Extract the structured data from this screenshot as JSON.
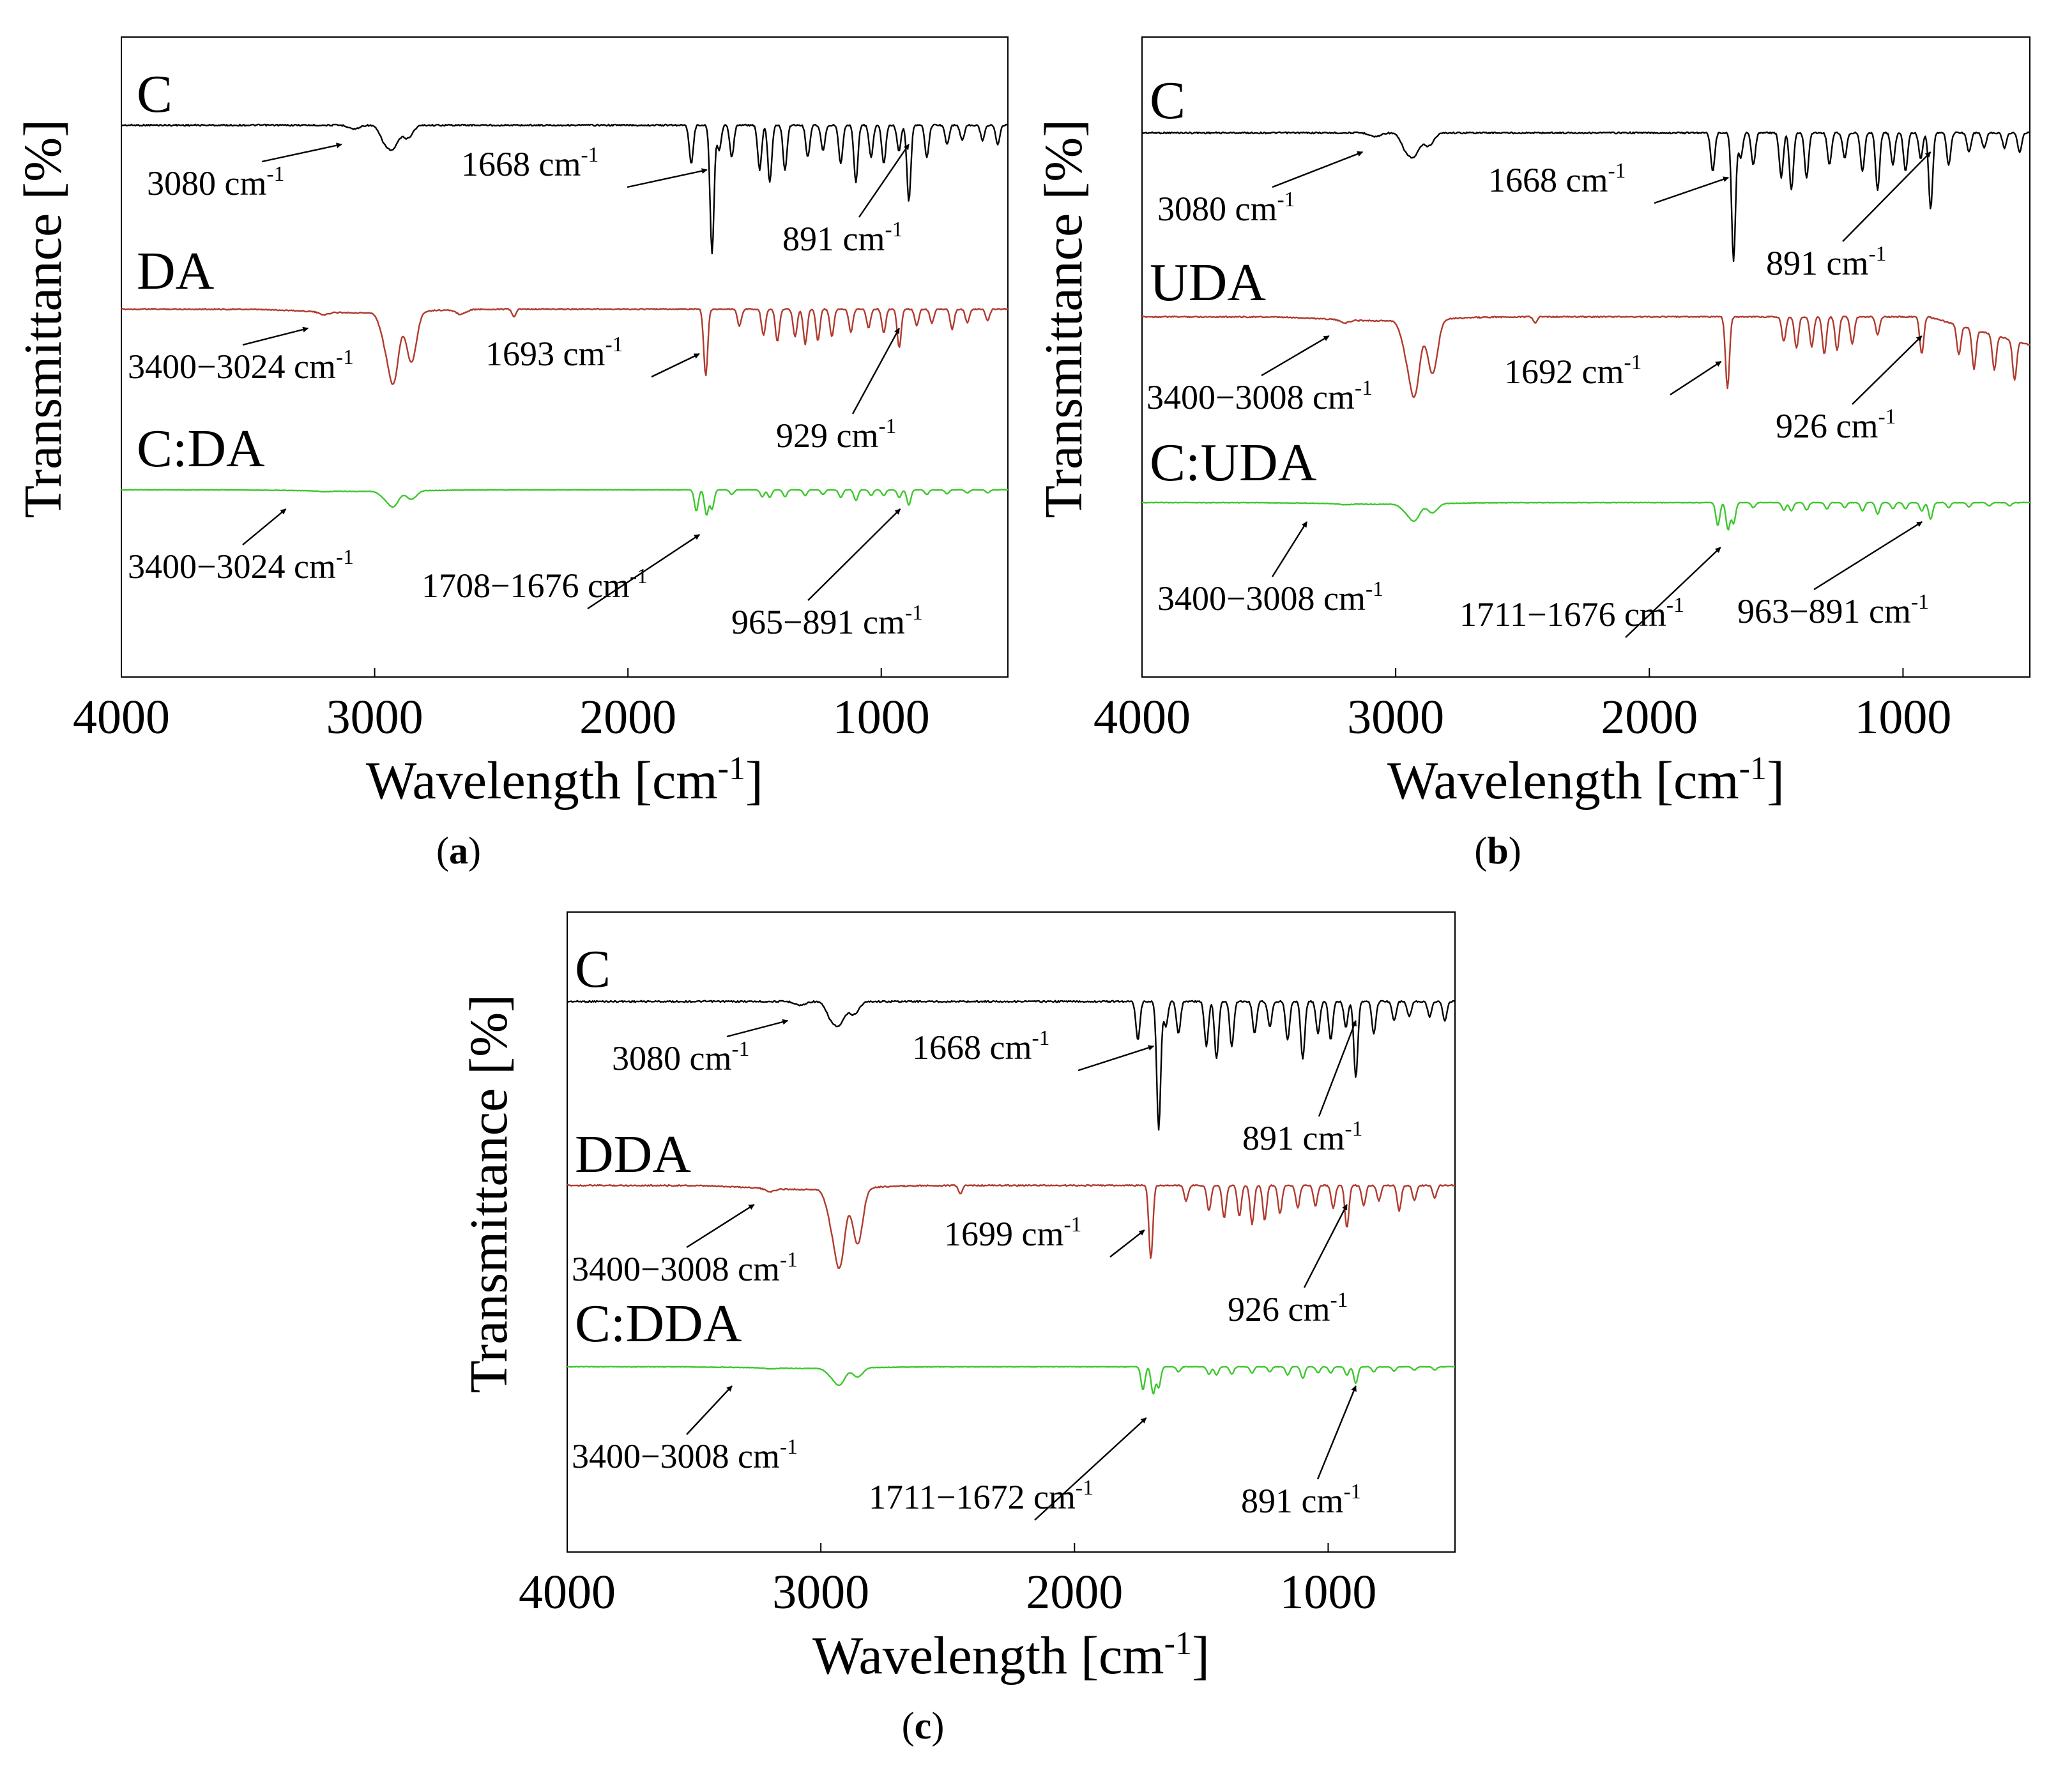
{
  "figure": {
    "unit_text": "cm",
    "unit_exp": "-1"
  },
  "chart_data": [
    {
      "type": "line",
      "panel_label": "a",
      "xlabel_prefix": "Wavelength [cm",
      "xlabel_suffix": "]",
      "ylabel": "Transmittance [%]",
      "xlim": [
        4000,
        500
      ],
      "xticks": [
        "4000",
        "3000",
        "2000",
        "1000"
      ],
      "series": [
        {
          "name": "C",
          "color": "#000000",
          "peaks": [
            [
              3080,
              0.03
            ],
            [
              2960,
              0.12
            ],
            [
              2925,
              0.16
            ],
            [
              2870,
              0.1
            ],
            [
              1750,
              0.3
            ],
            [
              1668,
              1.0
            ],
            [
              1640,
              0.2
            ],
            [
              1590,
              0.25
            ],
            [
              1480,
              0.35
            ],
            [
              1440,
              0.45
            ],
            [
              1380,
              0.35
            ],
            [
              1290,
              0.25
            ],
            [
              1230,
              0.2
            ],
            [
              1160,
              0.3
            ],
            [
              1100,
              0.45
            ],
            [
              1040,
              0.25
            ],
            [
              990,
              0.3
            ],
            [
              930,
              0.2
            ],
            [
              891,
              0.6
            ],
            [
              820,
              0.25
            ],
            [
              740,
              0.15
            ],
            [
              680,
              0.12
            ],
            [
              600,
              0.12
            ],
            [
              540,
              0.15
            ]
          ],
          "annotations": [
            {
              "text": "3080 cm",
              "peak_x": 3080
            },
            {
              "text": "1668 cm",
              "peak_x": 1668
            },
            {
              "text": "891 cm",
              "peak_x": 891
            }
          ]
        },
        {
          "name": "DA",
          "color": "#b03a2e",
          "peaks": [
            [
              3200,
              0.03
            ],
            [
              2960,
              0.25
            ],
            [
              2925,
              0.72
            ],
            [
              2855,
              0.55
            ],
            [
              2660,
              0.05
            ],
            [
              2450,
              0.08
            ],
            [
              1693,
              0.72
            ],
            [
              1560,
              0.18
            ],
            [
              1465,
              0.28
            ],
            [
              1410,
              0.35
            ],
            [
              1340,
              0.3
            ],
            [
              1300,
              0.38
            ],
            [
              1250,
              0.34
            ],
            [
              1195,
              0.3
            ],
            [
              1120,
              0.25
            ],
            [
              1050,
              0.2
            ],
            [
              990,
              0.25
            ],
            [
              929,
              0.42
            ],
            [
              860,
              0.18
            ],
            [
              800,
              0.15
            ],
            [
              720,
              0.22
            ],
            [
              660,
              0.15
            ],
            [
              580,
              0.12
            ]
          ],
          "annotations": [
            {
              "text": "3400−3024 cm",
              "peak_x": 3200
            },
            {
              "text": "1693 cm",
              "peak_x": 1693
            },
            {
              "text": "929 cm",
              "peak_x": 929
            }
          ]
        },
        {
          "name": "C:DA",
          "color": "#3ec72e",
          "peaks": [
            [
              3200,
              0.02
            ],
            [
              2960,
              0.15
            ],
            [
              2925,
              0.38
            ],
            [
              2855,
              0.22
            ],
            [
              1730,
              0.55
            ],
            [
              1690,
              0.65
            ],
            [
              1668,
              0.5
            ],
            [
              1590,
              0.12
            ],
            [
              1470,
              0.18
            ],
            [
              1440,
              0.2
            ],
            [
              1380,
              0.18
            ],
            [
              1300,
              0.15
            ],
            [
              1230,
              0.12
            ],
            [
              1160,
              0.2
            ],
            [
              1100,
              0.28
            ],
            [
              1040,
              0.15
            ],
            [
              990,
              0.15
            ],
            [
              929,
              0.2
            ],
            [
              891,
              0.4
            ],
            [
              820,
              0.12
            ],
            [
              740,
              0.1
            ],
            [
              660,
              0.08
            ],
            [
              580,
              0.08
            ]
          ],
          "annotations": [
            {
              "text": "3400−3024 cm",
              "peak_x": 3300
            },
            {
              "text": "1708−1676 cm",
              "peak_x": 1692
            },
            {
              "text": "965−891 cm",
              "peak_x": 925
            }
          ]
        }
      ]
    },
    {
      "type": "line",
      "panel_label": "b",
      "xlabel_prefix": "Wavelength [cm",
      "xlabel_suffix": "]",
      "ylabel": "Transmittance [%]",
      "xlim": [
        4000,
        500
      ],
      "xticks": [
        "4000",
        "3000",
        "2000",
        "1000"
      ],
      "series": [
        {
          "name": "C",
          "color": "#000000",
          "peaks": [
            [
              3080,
              0.03
            ],
            [
              2960,
              0.12
            ],
            [
              2925,
              0.16
            ],
            [
              2870,
              0.1
            ],
            [
              1750,
              0.3
            ],
            [
              1668,
              1.0
            ],
            [
              1640,
              0.2
            ],
            [
              1590,
              0.25
            ],
            [
              1480,
              0.35
            ],
            [
              1440,
              0.45
            ],
            [
              1380,
              0.35
            ],
            [
              1290,
              0.25
            ],
            [
              1230,
              0.2
            ],
            [
              1160,
              0.3
            ],
            [
              1100,
              0.45
            ],
            [
              1040,
              0.25
            ],
            [
              990,
              0.3
            ],
            [
              930,
              0.2
            ],
            [
              891,
              0.6
            ],
            [
              820,
              0.25
            ],
            [
              740,
              0.15
            ],
            [
              680,
              0.12
            ],
            [
              600,
              0.12
            ],
            [
              540,
              0.15
            ]
          ],
          "annotations": [
            {
              "text": "3080 cm",
              "peak_x": 3080
            },
            {
              "text": "1668 cm",
              "peak_x": 1668
            },
            {
              "text": "891 cm",
              "peak_x": 891
            }
          ]
        },
        {
          "name": "UDA",
          "color": "#b03a2e",
          "peaks": [
            [
              3200,
              0.03
            ],
            [
              2960,
              0.25
            ],
            [
              2925,
              0.72
            ],
            [
              2855,
              0.55
            ],
            [
              2450,
              0.06
            ],
            [
              1692,
              0.72
            ],
            [
              1470,
              0.25
            ],
            [
              1420,
              0.32
            ],
            [
              1360,
              0.3
            ],
            [
              1310,
              0.38
            ],
            [
              1260,
              0.34
            ],
            [
              1200,
              0.28
            ],
            [
              1100,
              0.18
            ],
            [
              926,
              0.38
            ],
            [
              780,
              0.3
            ],
            [
              720,
              0.4
            ],
            [
              640,
              0.35
            ],
            [
              560,
              0.4
            ]
          ],
          "annotations": [
            {
              "text": "3400−3008 cm",
              "peak_x": 3200
            },
            {
              "text": "1692 cm",
              "peak_x": 1692
            },
            {
              "text": "926 cm",
              "peak_x": 926
            }
          ]
        },
        {
          "name": "C:UDA",
          "color": "#3ec72e",
          "peaks": [
            [
              3200,
              0.02
            ],
            [
              2960,
              0.15
            ],
            [
              2925,
              0.38
            ],
            [
              2855,
              0.22
            ],
            [
              1730,
              0.55
            ],
            [
              1690,
              0.65
            ],
            [
              1668,
              0.5
            ],
            [
              1590,
              0.12
            ],
            [
              1470,
              0.18
            ],
            [
              1440,
              0.2
            ],
            [
              1380,
              0.18
            ],
            [
              1300,
              0.15
            ],
            [
              1230,
              0.12
            ],
            [
              1160,
              0.2
            ],
            [
              1100,
              0.28
            ],
            [
              1040,
              0.15
            ],
            [
              990,
              0.15
            ],
            [
              926,
              0.2
            ],
            [
              891,
              0.4
            ],
            [
              820,
              0.12
            ],
            [
              740,
              0.1
            ],
            [
              660,
              0.08
            ],
            [
              580,
              0.08
            ]
          ],
          "annotations": [
            {
              "text": "3400−3008 cm",
              "peak_x": 3300
            },
            {
              "text": "1711−1676 cm",
              "peak_x": 1694
            },
            {
              "text": "963−891 cm",
              "peak_x": 925
            }
          ]
        }
      ]
    },
    {
      "type": "line",
      "panel_label": "c",
      "xlabel_prefix": "Wavelength [cm",
      "xlabel_suffix": "]",
      "ylabel": "Transmittance [%]",
      "xlim": [
        4000,
        500
      ],
      "xticks": [
        "4000",
        "3000",
        "2000",
        "1000"
      ],
      "series": [
        {
          "name": "C",
          "color": "#000000",
          "peaks": [
            [
              3080,
              0.03
            ],
            [
              2960,
              0.12
            ],
            [
              2925,
              0.16
            ],
            [
              2870,
              0.1
            ],
            [
              1750,
              0.3
            ],
            [
              1668,
              1.0
            ],
            [
              1640,
              0.2
            ],
            [
              1590,
              0.25
            ],
            [
              1480,
              0.35
            ],
            [
              1440,
              0.45
            ],
            [
              1380,
              0.35
            ],
            [
              1290,
              0.25
            ],
            [
              1230,
              0.2
            ],
            [
              1160,
              0.3
            ],
            [
              1100,
              0.45
            ],
            [
              1040,
              0.25
            ],
            [
              990,
              0.3
            ],
            [
              930,
              0.2
            ],
            [
              891,
              0.6
            ],
            [
              820,
              0.25
            ],
            [
              740,
              0.15
            ],
            [
              680,
              0.12
            ],
            [
              600,
              0.12
            ],
            [
              540,
              0.15
            ]
          ],
          "annotations": [
            {
              "text": "3080 cm",
              "peak_x": 3080
            },
            {
              "text": "1668 cm",
              "peak_x": 1668
            },
            {
              "text": "891 cm",
              "peak_x": 891
            }
          ]
        },
        {
          "name": "DDA",
          "color": "#b03a2e",
          "peaks": [
            [
              3200,
              0.03
            ],
            [
              2960,
              0.25
            ],
            [
              2925,
              0.72
            ],
            [
              2855,
              0.55
            ],
            [
              2450,
              0.08
            ],
            [
              1699,
              0.72
            ],
            [
              1560,
              0.15
            ],
            [
              1470,
              0.25
            ],
            [
              1410,
              0.32
            ],
            [
              1350,
              0.3
            ],
            [
              1300,
              0.38
            ],
            [
              1250,
              0.34
            ],
            [
              1190,
              0.28
            ],
            [
              1120,
              0.22
            ],
            [
              1050,
              0.2
            ],
            [
              980,
              0.22
            ],
            [
              926,
              0.42
            ],
            [
              860,
              0.2
            ],
            [
              800,
              0.15
            ],
            [
              720,
              0.25
            ],
            [
              660,
              0.15
            ],
            [
              580,
              0.12
            ]
          ],
          "annotations": [
            {
              "text": "3400−3008 cm",
              "peak_x": 3200
            },
            {
              "text": "1699 cm",
              "peak_x": 1699
            },
            {
              "text": "926 cm",
              "peak_x": 926
            }
          ]
        },
        {
          "name": "C:DDA",
          "color": "#3ec72e",
          "peaks": [
            [
              3200,
              0.02
            ],
            [
              2960,
              0.15
            ],
            [
              2925,
              0.38
            ],
            [
              2855,
              0.22
            ],
            [
              1730,
              0.55
            ],
            [
              1690,
              0.65
            ],
            [
              1668,
              0.5
            ],
            [
              1590,
              0.12
            ],
            [
              1470,
              0.18
            ],
            [
              1440,
              0.2
            ],
            [
              1380,
              0.18
            ],
            [
              1300,
              0.15
            ],
            [
              1230,
              0.12
            ],
            [
              1160,
              0.2
            ],
            [
              1100,
              0.28
            ],
            [
              1040,
              0.15
            ],
            [
              990,
              0.15
            ],
            [
              926,
              0.2
            ],
            [
              891,
              0.4
            ],
            [
              820,
              0.12
            ],
            [
              740,
              0.1
            ],
            [
              660,
              0.08
            ],
            [
              580,
              0.08
            ]
          ],
          "annotations": [
            {
              "text": "3400−3008 cm",
              "peak_x": 3300
            },
            {
              "text": "1711−1672 cm",
              "peak_x": 1692
            },
            {
              "text": "891 cm",
              "peak_x": 891
            }
          ]
        }
      ]
    }
  ]
}
